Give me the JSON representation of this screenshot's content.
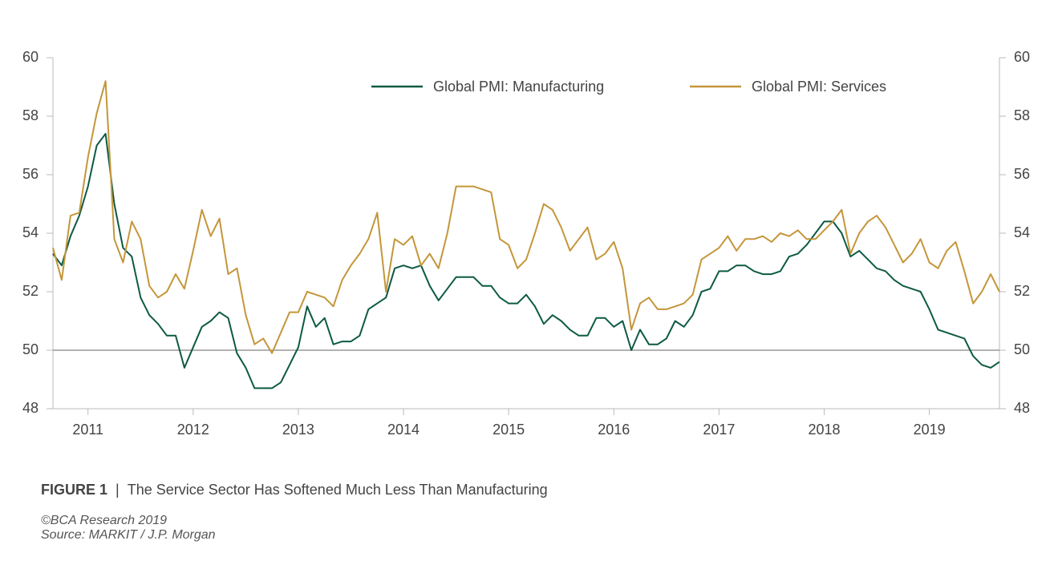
{
  "chart_data": {
    "type": "line",
    "categories": [
      null,
      null,
      null,
      null,
      "2011",
      null,
      null,
      null,
      null,
      null,
      null,
      null,
      null,
      null,
      null,
      null,
      "2012",
      null,
      null,
      null,
      null,
      null,
      null,
      null,
      null,
      null,
      null,
      null,
      "2013",
      null,
      null,
      null,
      null,
      null,
      null,
      null,
      null,
      null,
      null,
      null,
      "2014",
      null,
      null,
      null,
      null,
      null,
      null,
      null,
      null,
      null,
      null,
      null,
      "2015",
      null,
      null,
      null,
      null,
      null,
      null,
      null,
      null,
      null,
      null,
      null,
      "2016",
      null,
      null,
      null,
      null,
      null,
      null,
      null,
      null,
      null,
      null,
      null,
      "2017",
      null,
      null,
      null,
      null,
      null,
      null,
      null,
      null,
      null,
      null,
      null,
      "2018",
      null,
      null,
      null,
      null,
      null,
      null,
      null,
      null,
      null,
      null,
      null,
      "2019",
      null,
      null,
      null,
      null,
      null,
      null,
      null,
      null
    ],
    "series": [
      {
        "name": "Global PMI: Manufacturing",
        "color": "#0d5a44",
        "values": [
          53.3,
          52.9,
          53.9,
          54.6,
          55.6,
          57.0,
          57.4,
          55.0,
          53.5,
          53.2,
          51.8,
          51.2,
          50.9,
          50.5,
          50.5,
          49.4,
          50.1,
          50.8,
          51.0,
          51.3,
          51.1,
          49.9,
          49.4,
          48.7,
          48.7,
          48.7,
          48.9,
          49.5,
          50.1,
          51.5,
          50.8,
          51.1,
          50.2,
          50.3,
          50.3,
          50.5,
          51.4,
          51.6,
          51.8,
          52.8,
          52.9,
          52.8,
          52.9,
          52.2,
          51.7,
          52.1,
          52.5,
          52.5,
          52.5,
          52.2,
          52.2,
          51.8,
          51.6,
          51.6,
          51.9,
          51.5,
          50.9,
          51.2,
          51.0,
          50.7,
          50.5,
          50.5,
          51.1,
          51.1,
          50.8,
          51.0,
          50.0,
          50.7,
          50.2,
          50.2,
          50.4,
          51.0,
          50.8,
          51.2,
          52.0,
          52.1,
          52.7,
          52.7,
          52.9,
          52.9,
          52.7,
          52.6,
          52.6,
          52.7,
          53.2,
          53.3,
          53.6,
          54.0,
          54.4,
          54.4,
          54.0,
          53.2,
          53.4,
          53.1,
          52.8,
          52.7,
          52.4,
          52.2,
          52.1,
          52.0,
          51.4,
          50.7,
          50.6,
          50.5,
          50.4,
          49.8,
          49.5,
          49.4,
          49.6
        ]
      },
      {
        "name": "Global PMI: Services",
        "color": "#c4963a",
        "values": [
          53.5,
          52.4,
          54.6,
          54.7,
          56.6,
          58.1,
          59.2,
          53.8,
          53.0,
          54.4,
          53.8,
          52.2,
          51.8,
          52.0,
          52.6,
          52.1,
          53.4,
          54.8,
          53.9,
          54.5,
          52.6,
          52.8,
          51.2,
          50.2,
          50.4,
          49.9,
          50.6,
          51.3,
          51.3,
          52.0,
          51.9,
          51.8,
          51.5,
          52.4,
          52.9,
          53.3,
          53.8,
          54.7,
          52.0,
          53.8,
          53.6,
          53.9,
          52.9,
          53.3,
          52.8,
          54.0,
          55.6,
          55.6,
          55.6,
          55.5,
          55.4,
          53.8,
          53.6,
          52.8,
          53.1,
          54.0,
          55.0,
          54.8,
          54.2,
          53.4,
          53.8,
          54.2,
          53.1,
          53.3,
          53.7,
          52.8,
          50.7,
          51.6,
          51.8,
          51.4,
          51.4,
          51.5,
          51.6,
          51.9,
          53.1,
          53.3,
          53.5,
          53.9,
          53.4,
          53.8,
          53.8,
          53.9,
          53.7,
          54.0,
          53.9,
          54.1,
          53.8,
          53.8,
          54.1,
          54.4,
          54.8,
          53.3,
          54.0,
          54.4,
          54.6,
          54.2,
          53.6,
          53.0,
          53.3,
          53.8,
          53.0,
          52.8,
          53.4,
          53.7,
          52.7,
          51.6,
          52.0,
          52.6,
          52.0
        ]
      }
    ],
    "ylim": [
      48,
      60
    ],
    "yticks": [
      48,
      50,
      52,
      54,
      56,
      58,
      60
    ],
    "y2lim": [
      48,
      60
    ],
    "y2ticks": [
      48,
      50,
      52,
      54,
      56,
      58,
      60
    ],
    "reference_line": 50,
    "legend": "top",
    "caption": {
      "label": "FIGURE 1",
      "separator": "|",
      "text": "The Service Sector Has Softened Much Less Than Manufacturing"
    },
    "copyright": "©BCA Research 2019",
    "source": "Source: MARKIT / J.P. Morgan"
  }
}
